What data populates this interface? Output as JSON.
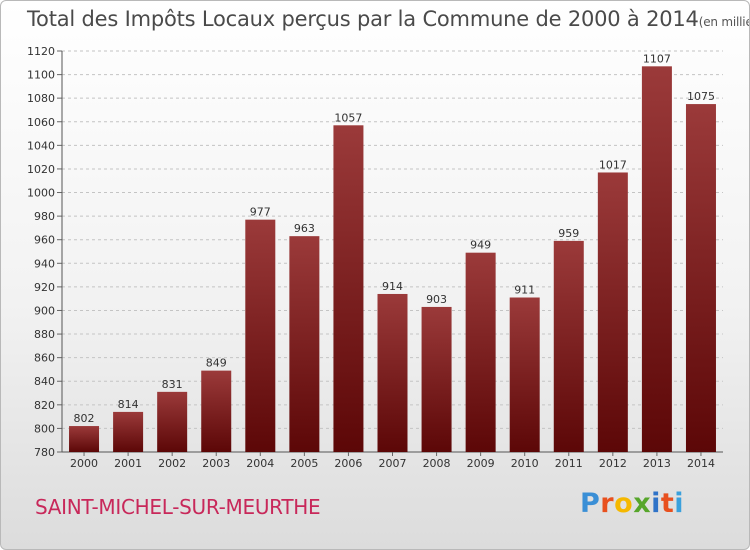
{
  "title": {
    "main": "Total des Impôts Locaux perçus par la Commune de 2000 à 2014",
    "unit": "(en milliers d'€)"
  },
  "footer": {
    "commune": "SAINT-MICHEL-SUR-MEURTHE",
    "brand": "Proxiti"
  },
  "colors": {
    "bar_top": "#9b3a3a",
    "bar_bottom": "#5c0707",
    "brand_letters": [
      "#3a8fd6",
      "#e8501e",
      "#f5b800",
      "#57a62b",
      "#2f73c8",
      "#e8501e",
      "#3aa0dc"
    ]
  },
  "chart_data": {
    "type": "bar",
    "title": "Total des Impôts Locaux perçus par la Commune de 2000 à 2014",
    "xlabel": "",
    "ylabel": "",
    "categories": [
      "2000",
      "2001",
      "2002",
      "2003",
      "2004",
      "2005",
      "2006",
      "2007",
      "2008",
      "2009",
      "2010",
      "2011",
      "2012",
      "2013",
      "2014"
    ],
    "values": [
      802,
      814,
      831,
      849,
      977,
      963,
      1057,
      914,
      903,
      949,
      911,
      959,
      1017,
      1107,
      1075
    ],
    "ylim": [
      780,
      1120
    ],
    "yticks": [
      780,
      800,
      820,
      840,
      860,
      880,
      900,
      920,
      940,
      960,
      980,
      1000,
      1020,
      1040,
      1060,
      1080,
      1100,
      1120
    ],
    "grid": true,
    "data_labels": true
  }
}
